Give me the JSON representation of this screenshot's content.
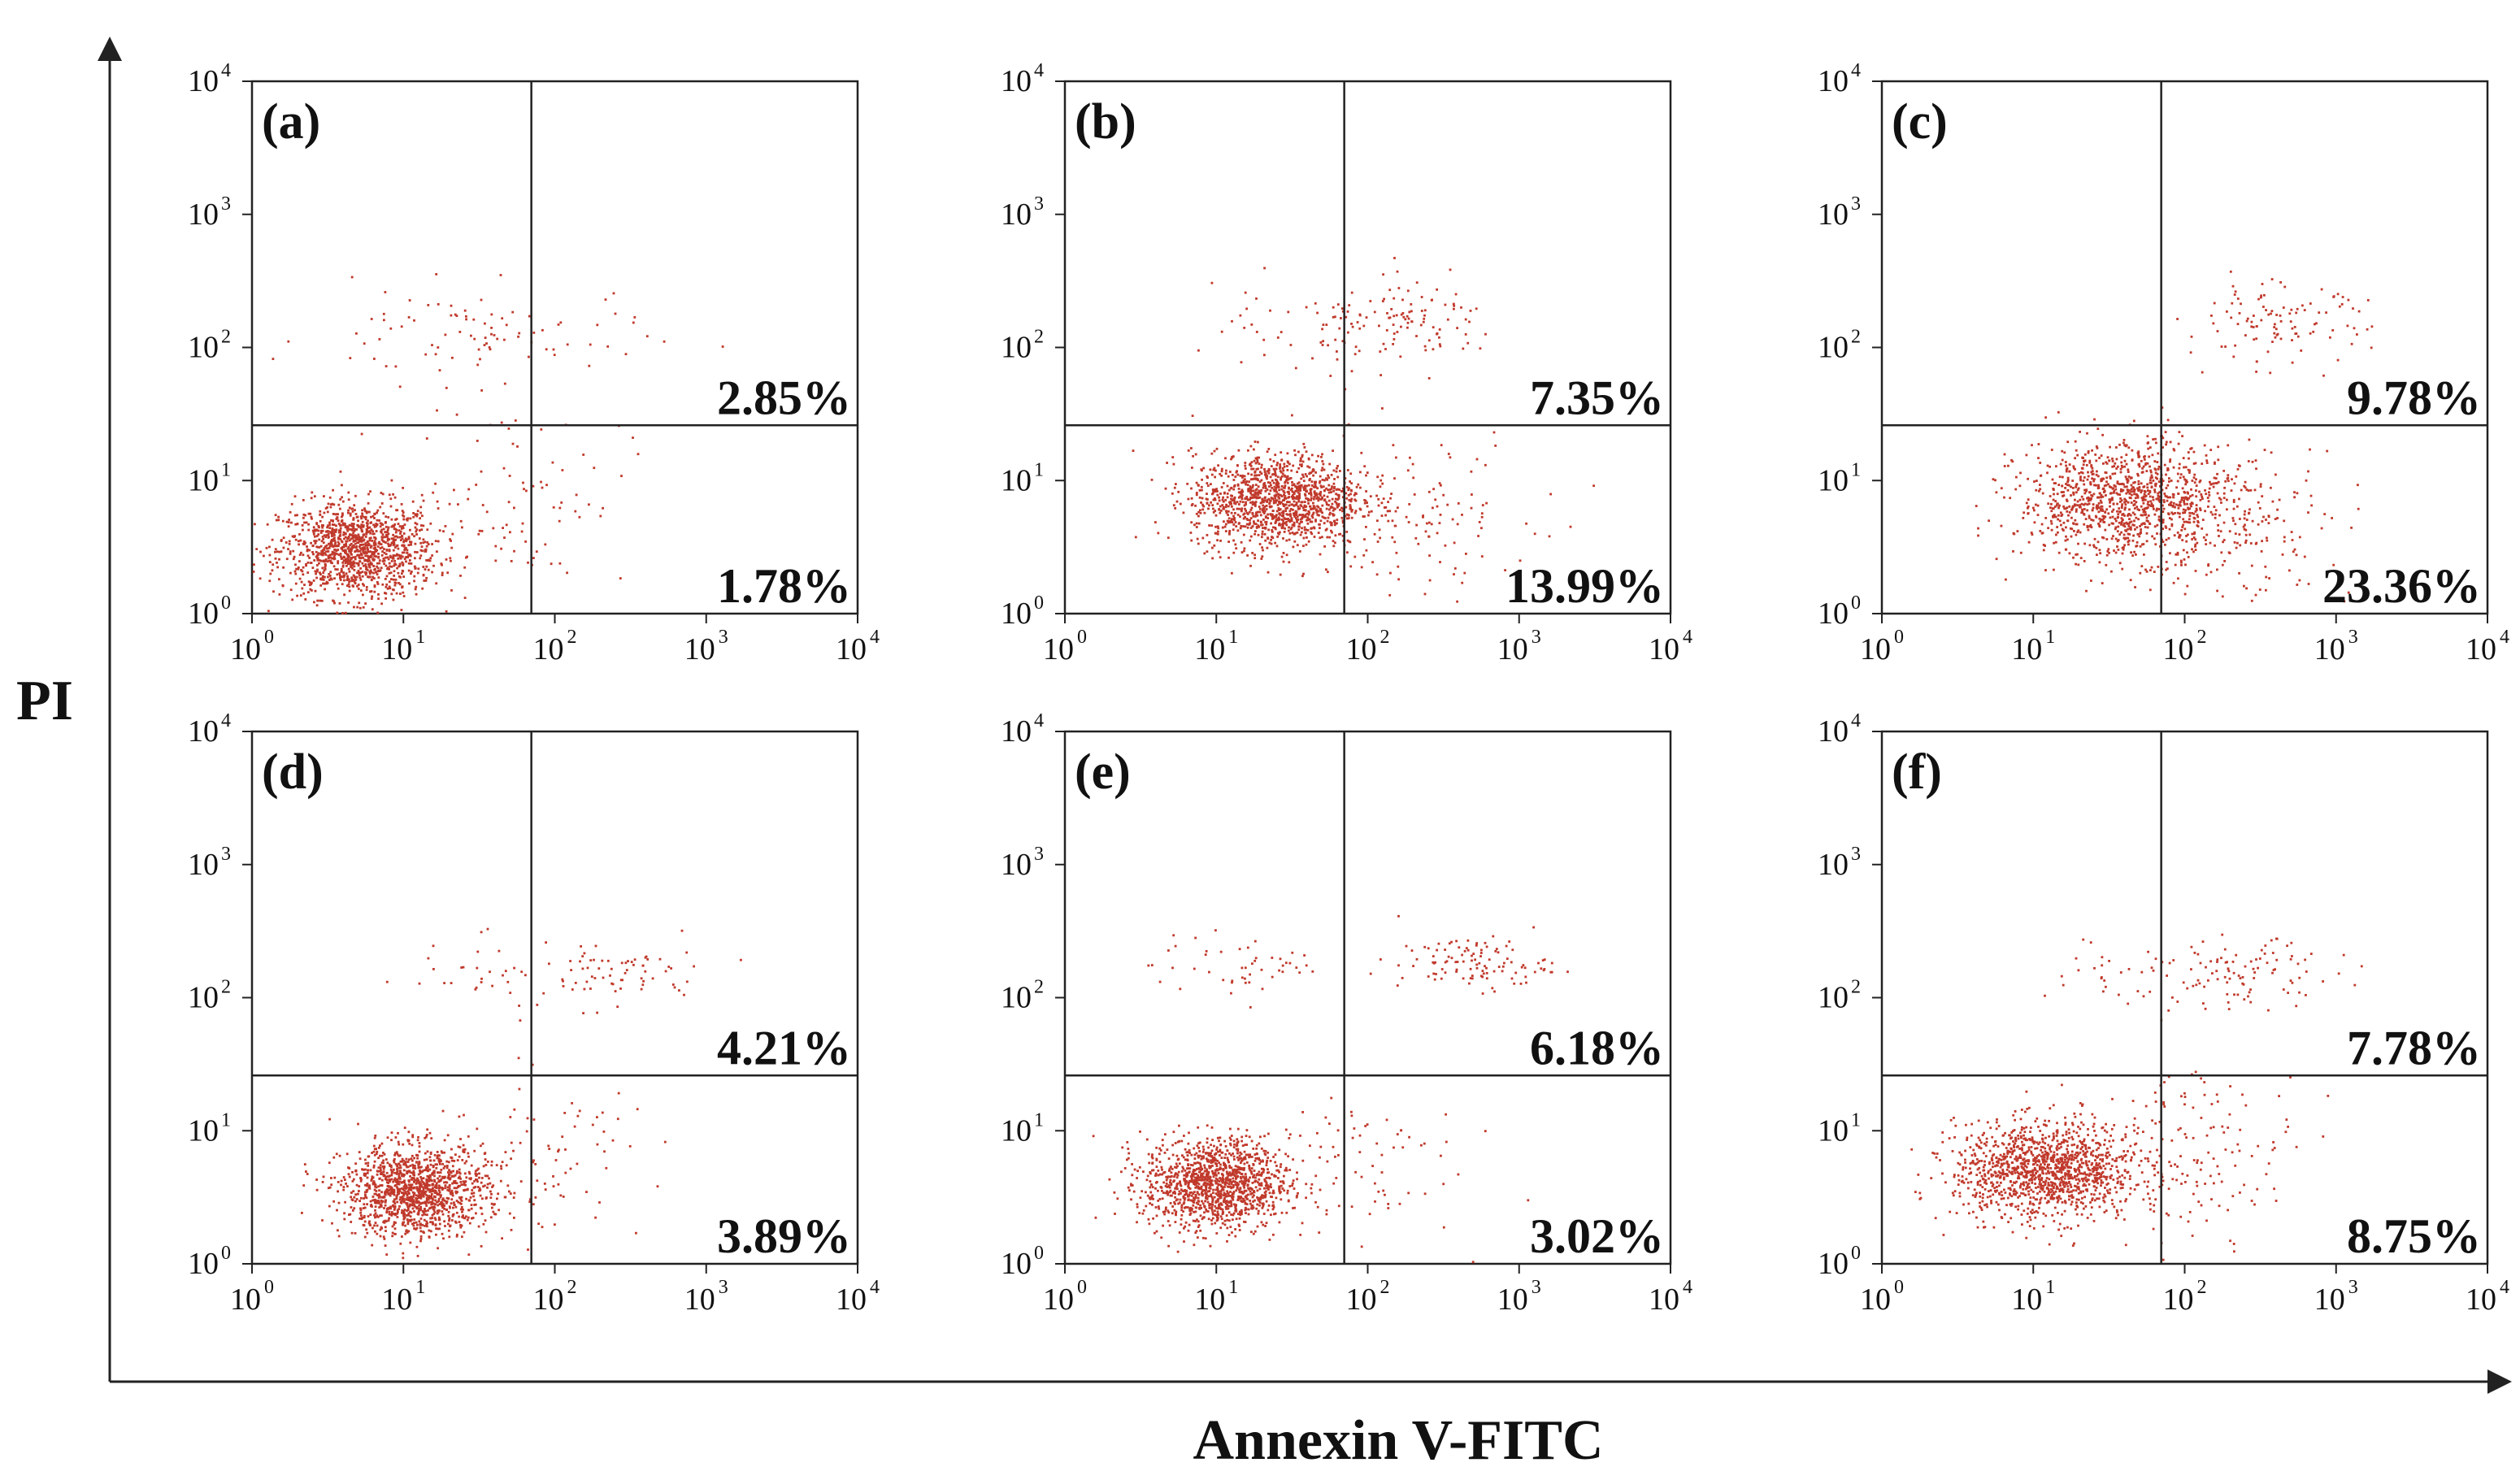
{
  "chart_data": {
    "type": "scatter",
    "x_axis_title": "Annexin V-FITC",
    "y_axis_title": "PI",
    "xlim": [
      1,
      10000
    ],
    "ylim": [
      1,
      10000
    ],
    "scale": "log10",
    "tick_base": "10",
    "tick_exponents": [
      "0",
      "1",
      "2",
      "3",
      "4"
    ],
    "quadrant_gate": {
      "x": 70,
      "y": 26
    },
    "panels": [
      {
        "label": "(a)",
        "upper_right_pct": "2.85%",
        "lower_right_pct": "1.78%",
        "clusters": [
          {
            "cx": 5,
            "cy": 3,
            "sx": 0.26,
            "sy": 0.18,
            "n": 1300
          },
          {
            "cx": 30,
            "cy": 120,
            "sx": 0.55,
            "sy": 0.18,
            "n": 90
          },
          {
            "cx": 60,
            "cy": 8,
            "sx": 0.35,
            "sy": 0.35,
            "n": 80
          }
        ]
      },
      {
        "label": "(b)",
        "upper_right_pct": "7.35%",
        "lower_right_pct": "13.99%",
        "clusters": [
          {
            "cx": 25,
            "cy": 7,
            "sx": 0.28,
            "sy": 0.18,
            "n": 1300
          },
          {
            "cx": 200,
            "cy": 150,
            "sx": 0.3,
            "sy": 0.15,
            "n": 110
          },
          {
            "cx": 30,
            "cy": 120,
            "sx": 0.4,
            "sy": 0.2,
            "n": 40
          },
          {
            "cx": 200,
            "cy": 6,
            "sx": 0.4,
            "sy": 0.3,
            "n": 120
          }
        ]
      },
      {
        "label": "(c)",
        "upper_right_pct": "9.78%",
        "lower_right_pct": "23.36%",
        "clusters": [
          {
            "cx": 40,
            "cy": 7,
            "sx": 0.35,
            "sy": 0.22,
            "n": 1100
          },
          {
            "cx": 400,
            "cy": 150,
            "sx": 0.3,
            "sy": 0.15,
            "n": 110
          },
          {
            "cx": 200,
            "cy": 5,
            "sx": 0.4,
            "sy": 0.3,
            "n": 200
          }
        ]
      },
      {
        "label": "(d)",
        "upper_right_pct": "4.21%",
        "lower_right_pct": "3.89%",
        "clusters": [
          {
            "cx": 12,
            "cy": 3.5,
            "sx": 0.24,
            "sy": 0.17,
            "n": 1300
          },
          {
            "cx": 250,
            "cy": 150,
            "sx": 0.3,
            "sy": 0.12,
            "n": 70
          },
          {
            "cx": 30,
            "cy": 150,
            "sx": 0.35,
            "sy": 0.15,
            "n": 30
          },
          {
            "cx": 80,
            "cy": 6,
            "sx": 0.35,
            "sy": 0.3,
            "n": 90
          }
        ]
      },
      {
        "label": "(e)",
        "upper_right_pct": "6.18%",
        "lower_right_pct": "3.02%",
        "clusters": [
          {
            "cx": 10,
            "cy": 4,
            "sx": 0.24,
            "sy": 0.17,
            "n": 1300
          },
          {
            "cx": 500,
            "cy": 180,
            "sx": 0.25,
            "sy": 0.1,
            "n": 110
          },
          {
            "cx": 15,
            "cy": 170,
            "sx": 0.3,
            "sy": 0.12,
            "n": 50
          },
          {
            "cx": 80,
            "cy": 6,
            "sx": 0.35,
            "sy": 0.3,
            "n": 70
          }
        ]
      },
      {
        "label": "(f)",
        "upper_right_pct": "7.78%",
        "lower_right_pct": "8.75%",
        "clusters": [
          {
            "cx": 12,
            "cy": 5,
            "sx": 0.3,
            "sy": 0.18,
            "n": 1300
          },
          {
            "cx": 250,
            "cy": 150,
            "sx": 0.3,
            "sy": 0.12,
            "n": 100
          },
          {
            "cx": 40,
            "cy": 150,
            "sx": 0.3,
            "sy": 0.15,
            "n": 30
          },
          {
            "cx": 120,
            "cy": 7,
            "sx": 0.35,
            "sy": 0.3,
            "n": 150
          }
        ]
      }
    ]
  },
  "colors": {
    "dot": "#c0392b",
    "axis": "#222222",
    "text": "#111111"
  }
}
